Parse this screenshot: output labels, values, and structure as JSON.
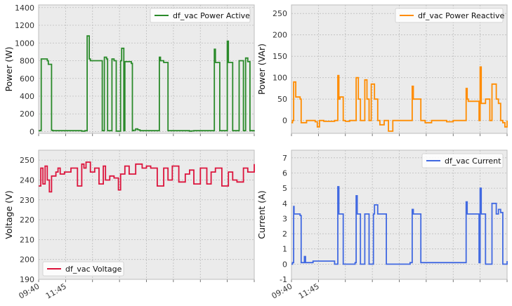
{
  "colors": {
    "panel_bg": "#ebebeb",
    "grid": "#bdbdbd",
    "frame": "#bcbcbc"
  },
  "chart_data": [
    {
      "type": "line",
      "ylabel": "Power (W)",
      "ylim": [
        -20,
        1430
      ],
      "yticks": [
        0,
        200,
        400,
        600,
        800,
        1000,
        1200,
        1400
      ],
      "legend": "top-right",
      "grid": true,
      "series": [
        {
          "name": "df_vac  Power Active",
          "color": "#2a8a2a",
          "x": [
            0,
            0.01,
            0.012,
            0.04,
            0.045,
            0.06,
            0.065,
            0.2,
            0.215,
            0.22,
            0.225,
            0.235,
            0.24,
            0.295,
            0.3,
            0.305,
            0.315,
            0.32,
            0.34,
            0.35,
            0.36,
            0.38,
            0.385,
            0.395,
            0.4,
            0.43,
            0.435,
            0.44,
            0.45,
            0.46,
            0.47,
            0.49,
            0.54,
            0.56,
            0.565,
            0.58,
            0.6,
            0.61,
            0.7,
            0.71,
            0.72,
            0.73,
            0.74,
            0.75,
            0.8,
            0.81,
            0.815,
            0.82,
            0.84,
            0.87,
            0.875,
            0.88,
            0.9,
            0.93,
            0.95,
            0.96,
            0.97,
            0.98,
            1.0
          ],
          "y": [
            10,
            15,
            820,
            800,
            760,
            15,
            10,
            5,
            10,
            10,
            1080,
            820,
            800,
            10,
            10,
            840,
            820,
            10,
            820,
            800,
            5,
            800,
            940,
            10,
            790,
            770,
            10,
            15,
            30,
            20,
            10,
            10,
            10,
            840,
            800,
            780,
            10,
            10,
            5,
            8,
            10,
            10,
            10,
            10,
            10,
            10,
            930,
            780,
            10,
            10,
            1020,
            780,
            10,
            800,
            10,
            830,
            790,
            10,
            15
          ]
        }
      ],
      "xlim": [
        0,
        1
      ]
    },
    {
      "type": "line",
      "ylabel": "Power (VAr)",
      "ylim": [
        -30,
        270
      ],
      "yticks": [
        0,
        50,
        100,
        150,
        200,
        250
      ],
      "legend": "top-right",
      "grid": true,
      "series": [
        {
          "name": "df_vac Power Reactive",
          "color": "#ff8c00",
          "x": [
            0,
            0.005,
            0.01,
            0.02,
            0.04,
            0.045,
            0.07,
            0.11,
            0.12,
            0.13,
            0.15,
            0.2,
            0.215,
            0.22,
            0.225,
            0.24,
            0.25,
            0.27,
            0.295,
            0.3,
            0.31,
            0.32,
            0.34,
            0.35,
            0.36,
            0.37,
            0.385,
            0.4,
            0.41,
            0.43,
            0.45,
            0.47,
            0.55,
            0.56,
            0.565,
            0.58,
            0.6,
            0.62,
            0.65,
            0.7,
            0.72,
            0.75,
            0.8,
            0.81,
            0.815,
            0.82,
            0.87,
            0.875,
            0.88,
            0.9,
            0.92,
            0.93,
            0.95,
            0.96,
            0.97,
            0.98,
            0.99,
            1.0
          ],
          "y": [
            -5,
            0,
            90,
            55,
            50,
            -5,
            0,
            -3,
            -15,
            0,
            -2,
            0,
            105,
            50,
            55,
            0,
            -2,
            0,
            0,
            100,
            50,
            0,
            95,
            50,
            0,
            85,
            50,
            0,
            -10,
            0,
            -25,
            0,
            0,
            80,
            50,
            50,
            0,
            -5,
            0,
            0,
            -3,
            0,
            0,
            75,
            50,
            45,
            0,
            125,
            40,
            50,
            0,
            85,
            50,
            40,
            0,
            -5,
            -15,
            0
          ]
        }
      ],
      "xlim": [
        0,
        1
      ]
    },
    {
      "type": "line",
      "ylabel": "Voltage (V)",
      "ylim": [
        190,
        255
      ],
      "yticks": [
        190,
        200,
        210,
        220,
        230,
        240,
        250
      ],
      "legend": "bottom-left",
      "grid": true,
      "series": [
        {
          "name": "df_vac  Voltage",
          "color": "#dc143c",
          "x": [
            0,
            0.01,
            0.02,
            0.03,
            0.04,
            0.05,
            0.06,
            0.08,
            0.09,
            0.1,
            0.12,
            0.15,
            0.18,
            0.2,
            0.21,
            0.22,
            0.24,
            0.26,
            0.28,
            0.3,
            0.31,
            0.33,
            0.35,
            0.37,
            0.38,
            0.4,
            0.42,
            0.45,
            0.48,
            0.5,
            0.52,
            0.55,
            0.58,
            0.6,
            0.62,
            0.65,
            0.68,
            0.7,
            0.72,
            0.75,
            0.78,
            0.8,
            0.82,
            0.85,
            0.88,
            0.9,
            0.92,
            0.95,
            0.97,
            1.0
          ],
          "y": [
            237,
            246,
            238,
            247,
            240,
            234,
            242,
            244,
            246,
            243,
            244,
            246,
            237,
            248,
            246,
            249,
            244,
            246,
            238,
            247,
            240,
            242,
            241,
            235,
            243,
            247,
            243,
            248,
            246,
            247,
            246,
            237,
            246,
            240,
            247,
            239,
            243,
            245,
            238,
            246,
            238,
            244,
            246,
            237,
            244,
            240,
            239,
            246,
            244,
            248
          ]
        }
      ],
      "xlim": [
        0,
        1
      ],
      "xticks": [
        "09:40",
        "11:45"
      ]
    },
    {
      "type": "line",
      "ylabel": "Current (A)",
      "ylim": [
        -1,
        7.5
      ],
      "yticks": [
        -1,
        0,
        1,
        2,
        3,
        4,
        5,
        6,
        7
      ],
      "legend": "top-right",
      "grid": true,
      "series": [
        {
          "name": "df_vac  Current",
          "color": "#4169e1",
          "x": [
            0,
            0.005,
            0.01,
            0.012,
            0.04,
            0.045,
            0.06,
            0.065,
            0.1,
            0.2,
            0.215,
            0.22,
            0.225,
            0.24,
            0.295,
            0.3,
            0.305,
            0.32,
            0.34,
            0.35,
            0.36,
            0.38,
            0.385,
            0.4,
            0.43,
            0.44,
            0.55,
            0.56,
            0.565,
            0.58,
            0.6,
            0.7,
            0.8,
            0.81,
            0.815,
            0.82,
            0.87,
            0.875,
            0.88,
            0.9,
            0.93,
            0.95,
            0.96,
            0.97,
            0.98,
            1.0
          ],
          "y": [
            0,
            0.1,
            3.8,
            3.3,
            3.2,
            0.1,
            0.5,
            0.1,
            0.2,
            0,
            5.1,
            3.3,
            3.3,
            0,
            0.1,
            4.5,
            3.3,
            0,
            3.3,
            3.3,
            0,
            3.3,
            3.9,
            3.3,
            3.3,
            0,
            0.1,
            3.6,
            3.3,
            3.3,
            0.1,
            0.1,
            0.1,
            4.1,
            3.3,
            3.3,
            0.1,
            5.0,
            3.3,
            0,
            4.0,
            3.3,
            3.6,
            3.4,
            0,
            0.2
          ]
        }
      ],
      "xlim": [
        0,
        1
      ],
      "xticks": [
        "09:40",
        "11:45"
      ]
    }
  ]
}
